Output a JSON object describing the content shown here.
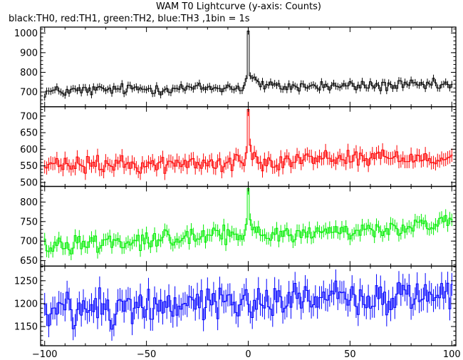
{
  "chart_data": {
    "type": "line",
    "title": "WAM T0 Lightcurve (y-axis: Counts)",
    "subtitle": "black:TH0, red:TH1, green:TH2, blue:TH3 ,1bin = 1s",
    "xlim": [
      -102,
      102
    ],
    "x_ticks": [
      -100,
      -50,
      0,
      50,
      100
    ],
    "panels": [
      {
        "name": "TH0",
        "color": "#000000",
        "ylim": [
          625,
          1030
        ],
        "y_ticks": [
          700,
          800,
          900,
          1000
        ],
        "baseline": [
          [
            -100,
            700
          ],
          [
            -60,
            715
          ],
          [
            -20,
            720
          ],
          [
            0,
            725
          ],
          [
            40,
            730
          ],
          [
            100,
            735
          ]
        ],
        "amplitude": 20,
        "error": 18,
        "peak_x": 0,
        "peak_y": 1010
      },
      {
        "name": "TH1",
        "color": "#ff0000",
        "ylim": [
          488,
          728
        ],
        "y_ticks": [
          500,
          550,
          600,
          650,
          700
        ],
        "baseline": [
          [
            -100,
            550
          ],
          [
            -40,
            555
          ],
          [
            0,
            560
          ],
          [
            40,
            575
          ],
          [
            100,
            575
          ]
        ],
        "amplitude": 18,
        "error": 20,
        "peak_x": 0,
        "peak_y": 720
      },
      {
        "name": "TH2",
        "color": "#00ee00",
        "ylim": [
          636,
          840
        ],
        "y_ticks": [
          650,
          700,
          750,
          800
        ],
        "baseline": [
          [
            -100,
            690
          ],
          [
            -50,
            705
          ],
          [
            0,
            715
          ],
          [
            50,
            725
          ],
          [
            100,
            745
          ]
        ],
        "amplitude": 16,
        "error": 16,
        "peak_x": 0,
        "peak_y": 835
      },
      {
        "name": "TH3",
        "color": "#0000ff",
        "ylim": [
          1108,
          1282
        ],
        "y_ticks": [
          1150,
          1200,
          1250
        ],
        "baseline": [
          [
            -100,
            1180
          ],
          [
            -50,
            1200
          ],
          [
            0,
            1205
          ],
          [
            50,
            1215
          ],
          [
            100,
            1220
          ]
        ],
        "amplitude": 28,
        "error": 25,
        "peak_x": null,
        "peak_y": null
      }
    ]
  }
}
